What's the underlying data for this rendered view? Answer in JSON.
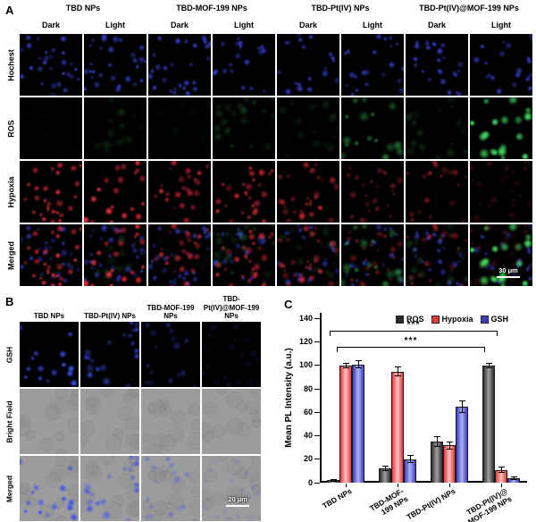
{
  "figure": {
    "panel_a": {
      "label": "A",
      "groups": [
        "TBD NPs",
        "TBD-MOF-199 NPs",
        "TBD-Pt(IV) NPs",
        "TBD-Pt(IV)@MOF-199 NPs"
      ],
      "conditions": [
        "Dark",
        "Light"
      ],
      "rows": [
        "Hochest",
        "ROS",
        "Hypoxia",
        "Merged"
      ],
      "scale_bar": "30 μm",
      "stain_colors": {
        "hochest": "#3c46e6",
        "ros": "#46e664",
        "hypoxia": "#eb2d3c"
      },
      "intensities": {
        "hochest": [
          0.8,
          0.75,
          0.78,
          0.74,
          0.76,
          0.72,
          0.75,
          0.78
        ],
        "ros": [
          0.02,
          0.12,
          0.04,
          0.18,
          0.1,
          0.45,
          0.15,
          0.95
        ],
        "hypoxia": [
          0.9,
          0.92,
          0.72,
          0.75,
          0.6,
          0.42,
          0.45,
          0.18
        ]
      }
    },
    "panel_b": {
      "label": "B",
      "columns": [
        "TBD NPs",
        "TBD-Pt(IV) NPs",
        "TBD-MOF-199 NPs",
        "TBD-Pt(IV)@MOF-199 NPs"
      ],
      "rows": [
        "GSH",
        "Bright Field",
        "Merged"
      ],
      "scale_bar": "20 μm",
      "stain_color": "#3c50f0",
      "bright_field_gray": "#9c9c9c",
      "gsh_intensities": [
        0.92,
        0.7,
        0.4,
        0.14
      ]
    },
    "panel_c": {
      "label": "C",
      "chart_data": {
        "type": "bar",
        "ylabel": "Mean PL Intensity (a.u.)",
        "ylim": [
          0,
          145
        ],
        "yticks": [
          0,
          20,
          40,
          60,
          80,
          100,
          120,
          140
        ],
        "grid": false,
        "legend_position": "top-right-inside",
        "categories": [
          "TBD NPs",
          "TBD-MOF-\n199 NPs",
          "TBD-Pt(IV) NPs",
          "TBD-Pt(IV)@\nMOF-199 NPs"
        ],
        "series": [
          {
            "name": "ROS",
            "color": "#2b2b2b",
            "color_light": "#a0a0a0",
            "values": [
              2,
              12,
              35,
              100
            ],
            "errors": [
              0.5,
              2,
              4,
              2
            ]
          },
          {
            "name": "Hypoxia",
            "color": "#e03a3a",
            "color_light": "#ffc2c2",
            "values": [
              100,
              95,
              32,
              11
            ],
            "errors": [
              2,
              4,
              3,
              2
            ]
          },
          {
            "name": "GSH",
            "color": "#3d3dbe",
            "color_light": "#aab2f0",
            "values": [
              101,
              20,
              65,
              4
            ],
            "errors": [
              3,
              3,
              5,
              1
            ]
          }
        ],
        "significance": [
          {
            "label": "***",
            "from": 0,
            "to": 3,
            "y": 116
          },
          {
            "label": "***",
            "from": 0,
            "to": 3,
            "y": 130
          }
        ]
      }
    }
  }
}
